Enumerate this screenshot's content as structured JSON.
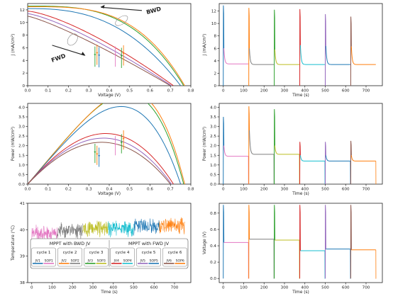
{
  "colors": {
    "c1": "#1f77b4",
    "c2": "#ff7f0e",
    "c3": "#2ca02c",
    "c4": "#d62728",
    "c5": "#9467bd",
    "c6": "#8c564b",
    "pink": "#e377c2",
    "gray": "#7f7f7f",
    "olive": "#bcbd22",
    "cyan": "#17becf"
  },
  "chart_data": [
    {
      "id": "jv",
      "type": "line",
      "xlabel": "Voltage (V)",
      "ylabel": "J (mA/cm²)",
      "xlim": [
        0,
        0.8
      ],
      "ylim": [
        0,
        13
      ],
      "xticks": [
        "0.0",
        "0.1",
        "0.2",
        "0.3",
        "0.4",
        "0.5",
        "0.6",
        "0.7",
        "0.8"
      ],
      "yticks": [
        "0",
        "2",
        "4",
        "6",
        "8",
        "10",
        "12"
      ],
      "annotations": [
        "BWD",
        "FWD"
      ],
      "series": [
        {
          "color": "c3",
          "jsc": 12.6,
          "voc": 0.765,
          "n": 3.2
        },
        {
          "color": "c2",
          "jsc": 12.5,
          "voc": 0.77,
          "n": 3.4
        },
        {
          "color": "c1",
          "jsc": 12.2,
          "voc": 0.75,
          "n": 2.6
        },
        {
          "color": "c4",
          "jsc": 11.8,
          "voc": 0.715,
          "n": 1.4
        },
        {
          "color": "c5",
          "jsc": 11.4,
          "voc": 0.705,
          "n": 1.3
        },
        {
          "color": "c6",
          "jsc": 11.0,
          "voc": 0.7,
          "n": 1.2
        }
      ],
      "markers": [
        {
          "x": 0.33,
          "y": 4.6,
          "color": "c3"
        },
        {
          "x": 0.34,
          "y": 4.9,
          "color": "c2"
        },
        {
          "x": 0.35,
          "y": 4.5,
          "color": "c1"
        },
        {
          "x": 0.43,
          "y": 4.6,
          "color": "pink"
        },
        {
          "x": 0.46,
          "y": 4.4,
          "color": "c3"
        },
        {
          "x": 0.47,
          "y": 4.8,
          "color": "c2"
        }
      ]
    },
    {
      "id": "pv",
      "type": "line",
      "xlabel": "Voltage (V)",
      "ylabel": "Power (mW/cm²)",
      "xlim": [
        0,
        0.8
      ],
      "ylim": [
        0,
        4.2
      ],
      "xticks": [
        "0.0",
        "0.1",
        "0.2",
        "0.3",
        "0.4",
        "0.5",
        "0.6",
        "0.7",
        "0.8"
      ],
      "yticks": [
        "0.0",
        "0.5",
        "1.0",
        "1.5",
        "2.0",
        "2.5",
        "3.0",
        "3.5",
        "4.0"
      ],
      "markers": [
        {
          "x": 0.33,
          "y": 1.6,
          "color": "c3"
        },
        {
          "x": 0.34,
          "y": 1.5,
          "color": "c2"
        },
        {
          "x": 0.35,
          "y": 1.4,
          "color": "c1"
        },
        {
          "x": 0.43,
          "y": 2.0,
          "color": "pink"
        },
        {
          "x": 0.46,
          "y": 2.1,
          "color": "c3"
        },
        {
          "x": 0.47,
          "y": 2.3,
          "color": "c2"
        }
      ]
    },
    {
      "id": "jt",
      "type": "line",
      "xlabel": "Time (s)",
      "ylabel": "J (mA/cm²)",
      "xlim": [
        -20,
        780
      ],
      "ylim": [
        0,
        13.2
      ],
      "xticks": [
        "0",
        "100",
        "200",
        "300",
        "400",
        "500",
        "600",
        "700"
      ],
      "yticks": [
        "0",
        "2",
        "4",
        "6",
        "8",
        "10",
        "12"
      ],
      "segments": [
        {
          "t0": 0,
          "peak": 12.9,
          "mid": 6.0,
          "steady": 3.5,
          "color": "c1",
          "tail": "pink"
        },
        {
          "t0": 125,
          "peak": 12.5,
          "mid": 6.0,
          "steady": 3.4,
          "color": "c2",
          "tail": "gray"
        },
        {
          "t0": 250,
          "peak": 12.2,
          "mid": 5.8,
          "steady": 3.4,
          "color": "c3",
          "tail": "olive"
        },
        {
          "t0": 375,
          "peak": 12.3,
          "mid": 6.5,
          "steady": 3.4,
          "color": "c4",
          "tail": "cyan"
        },
        {
          "t0": 500,
          "peak": 11.5,
          "mid": 6.4,
          "steady": 3.4,
          "color": "c5",
          "tail": "c1"
        },
        {
          "t0": 625,
          "peak": 11.1,
          "mid": 6.3,
          "steady": 3.4,
          "color": "c6",
          "tail": "c2"
        }
      ]
    },
    {
      "id": "pt",
      "type": "line",
      "xlabel": "Time (s)",
      "ylabel": "Power (mW/cm²)",
      "xlim": [
        -20,
        780
      ],
      "ylim": [
        0,
        4.2
      ],
      "xticks": [
        "0",
        "100",
        "200",
        "300",
        "400",
        "500",
        "600",
        "700"
      ],
      "yticks": [
        "0.0",
        "0.5",
        "1.0",
        "1.5",
        "2.0",
        "2.5",
        "3.0",
        "3.5",
        "4.0"
      ],
      "segments": [
        {
          "t0": 0,
          "peak": 3.5,
          "mid": 2.0,
          "steady": 1.45,
          "color": "c1",
          "tail": "pink"
        },
        {
          "t0": 125,
          "peak": 4.05,
          "mid": 2.8,
          "steady": 1.55,
          "color": "c2",
          "tail": "gray"
        },
        {
          "t0": 250,
          "peak": 3.9,
          "mid": 2.0,
          "steady": 1.55,
          "color": "c3",
          "tail": "olive"
        },
        {
          "t0": 375,
          "peak": 2.2,
          "mid": 1.5,
          "steady": 1.2,
          "color": "c4",
          "tail": "cyan"
        },
        {
          "t0": 500,
          "peak": 2.2,
          "mid": 1.5,
          "steady": 1.2,
          "color": "c5",
          "tail": "c1"
        },
        {
          "t0": 625,
          "peak": 2.25,
          "mid": 1.5,
          "steady": 1.2,
          "color": "c6",
          "tail": "c2"
        }
      ]
    },
    {
      "id": "temp",
      "type": "line",
      "xlabel": "Time (s)",
      "ylabel": "Temperature (°C)",
      "xlim": [
        -20,
        780
      ],
      "ylim": [
        38,
        41
      ],
      "xticks": [
        "0",
        "100",
        "200",
        "300",
        "400",
        "500",
        "600",
        "700"
      ],
      "yticks": [
        "38",
        "39",
        "40",
        "41"
      ],
      "segments": [
        {
          "t0": 0,
          "t1": 125,
          "mean": 39.85,
          "color": "pink"
        },
        {
          "t0": 125,
          "t1": 250,
          "mean": 39.95,
          "color": "gray"
        },
        {
          "t0": 250,
          "t1": 375,
          "mean": 40.05,
          "color": "olive"
        },
        {
          "t0": 375,
          "t1": 500,
          "mean": 40.05,
          "color": "cyan"
        },
        {
          "t0": 500,
          "t1": 625,
          "mean": 40.1,
          "color": "c1"
        },
        {
          "t0": 625,
          "t1": 750,
          "mean": 40.15,
          "color": "c2"
        }
      ],
      "legend": {
        "groups": [
          "MPPT with BWD JV",
          "MPPT with FWD JV"
        ],
        "cycles": [
          {
            "label": "cycle 1",
            "items": [
              {
                "label": "JV1",
                "color": "c1"
              },
              {
                "label": "SOP1",
                "color": "pink"
              }
            ]
          },
          {
            "label": "cycle 2",
            "items": [
              {
                "label": "JV2",
                "color": "c2"
              },
              {
                "label": "SOP2",
                "color": "gray"
              }
            ]
          },
          {
            "label": "cycle 3",
            "items": [
              {
                "label": "JV3",
                "color": "c3"
              },
              {
                "label": "SOP3",
                "color": "olive"
              }
            ]
          },
          {
            "label": "cycle 4",
            "items": [
              {
                "label": "JV4",
                "color": "c4"
              },
              {
                "label": "SOP4",
                "color": "cyan"
              }
            ]
          },
          {
            "label": "cycle 5",
            "items": [
              {
                "label": "JV5",
                "color": "c5"
              },
              {
                "label": "SOP5",
                "color": "c1"
              }
            ]
          },
          {
            "label": "cycle 6",
            "items": [
              {
                "label": "JV6",
                "color": "c6"
              },
              {
                "label": "SOP6",
                "color": "c2"
              }
            ]
          }
        ]
      }
    },
    {
      "id": "vt",
      "type": "line",
      "xlabel": "Time (s)",
      "ylabel": "Voltage (V)",
      "xlim": [
        -20,
        780
      ],
      "ylim": [
        -0.05,
        0.92
      ],
      "xticks": [
        "0",
        "100",
        "200",
        "300",
        "400",
        "500",
        "600",
        "700"
      ],
      "yticks": [
        "0.0",
        "0.2",
        "0.4",
        "0.6",
        "0.8"
      ],
      "segments": [
        {
          "t0": 0,
          "peak": 0.9,
          "steady": 0.44,
          "color": "c1",
          "tail": "pink"
        },
        {
          "t0": 125,
          "peak": 0.9,
          "steady": 0.48,
          "color": "c2",
          "tail": "gray"
        },
        {
          "t0": 250,
          "peak": 0.9,
          "steady": 0.47,
          "color": "c3",
          "tail": "olive"
        },
        {
          "t0": 375,
          "peak": 0.9,
          "steady": 0.34,
          "color": "c4",
          "tail": "cyan"
        },
        {
          "t0": 500,
          "peak": 0.9,
          "steady": 0.36,
          "color": "c5",
          "tail": "c1"
        },
        {
          "t0": 625,
          "peak": 0.9,
          "steady": 0.35,
          "color": "c6",
          "tail": "c2"
        }
      ]
    }
  ]
}
